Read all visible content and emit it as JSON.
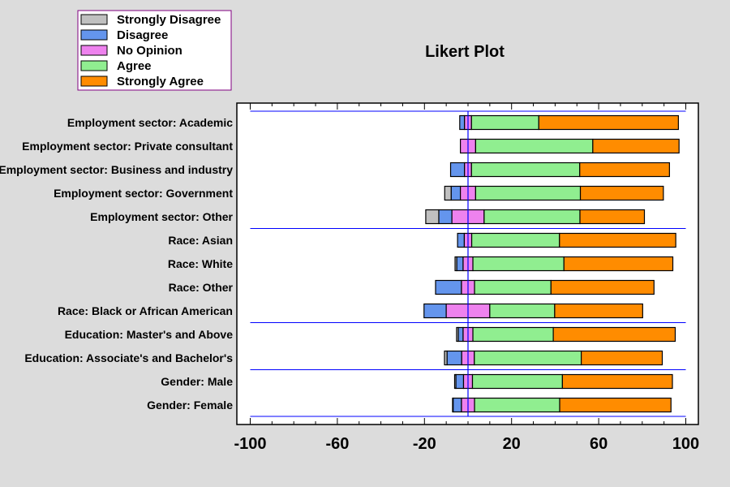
{
  "chart_data": {
    "type": "bar",
    "subtype": "diverging-stacked-horizontal",
    "title": "Likert Plot",
    "xlabel": "",
    "ylabel": "",
    "xlim": [
      -100,
      100
    ],
    "x_ticks": [
      "-100",
      "-60",
      "-20",
      "20",
      "60",
      "100"
    ],
    "x_tick_values": [
      -100,
      -60,
      -20,
      20,
      60,
      100
    ],
    "minor_tick_step": 10,
    "grid": false,
    "legend_position": "top-left",
    "series": [
      {
        "name": "Strongly Disagree",
        "color": "#c0c0c0"
      },
      {
        "name": "Disagree",
        "color": "#6495ed"
      },
      {
        "name": "No Opinion",
        "color": "#ee82ee"
      },
      {
        "name": "Agree",
        "color": "#90ee90"
      },
      {
        "name": "Strongly Agree",
        "color": "#ff8c00"
      }
    ],
    "categories": [
      "Employment sector: Academic",
      "Employment sector: Private consultant",
      "Employment sector: Business and industry",
      "Employment sector: Government",
      "Employment sector: Other",
      "Race: Asian",
      "Race: White",
      "Race: Other",
      "Race: Black or African American",
      "Education: Master's and Above",
      "Education: Associate's and Bachelor's",
      "Gender: Male",
      "Gender: Female"
    ],
    "values": [
      [
        0.0,
        2.2,
        3.2,
        30.9,
        64.1
      ],
      [
        0.0,
        0.0,
        7.0,
        53.8,
        39.6
      ],
      [
        0.0,
        6.4,
        3.2,
        49.7,
        41.2
      ],
      [
        3.0,
        4.2,
        7.0,
        48.1,
        38.1
      ],
      [
        6.0,
        6.0,
        14.8,
        44.0,
        29.6
      ],
      [
        0.0,
        3.1,
        3.4,
        40.3,
        53.4
      ],
      [
        0.8,
        2.9,
        4.5,
        41.8,
        50.0
      ],
      [
        0.0,
        11.9,
        6.0,
        35.1,
        47.3
      ],
      [
        0.0,
        10.2,
        20.0,
        29.8,
        40.4
      ],
      [
        0.8,
        2.2,
        4.5,
        36.9,
        56.0
      ],
      [
        1.2,
        6.7,
        5.8,
        49.1,
        37.2
      ],
      [
        0.6,
        3.5,
        4.1,
        41.3,
        50.5
      ],
      [
        0.3,
        3.8,
        6.0,
        39.1,
        51.1
      ]
    ],
    "group_separators_after": [
      4,
      8,
      10
    ],
    "separator_color": "#0000ff"
  }
}
